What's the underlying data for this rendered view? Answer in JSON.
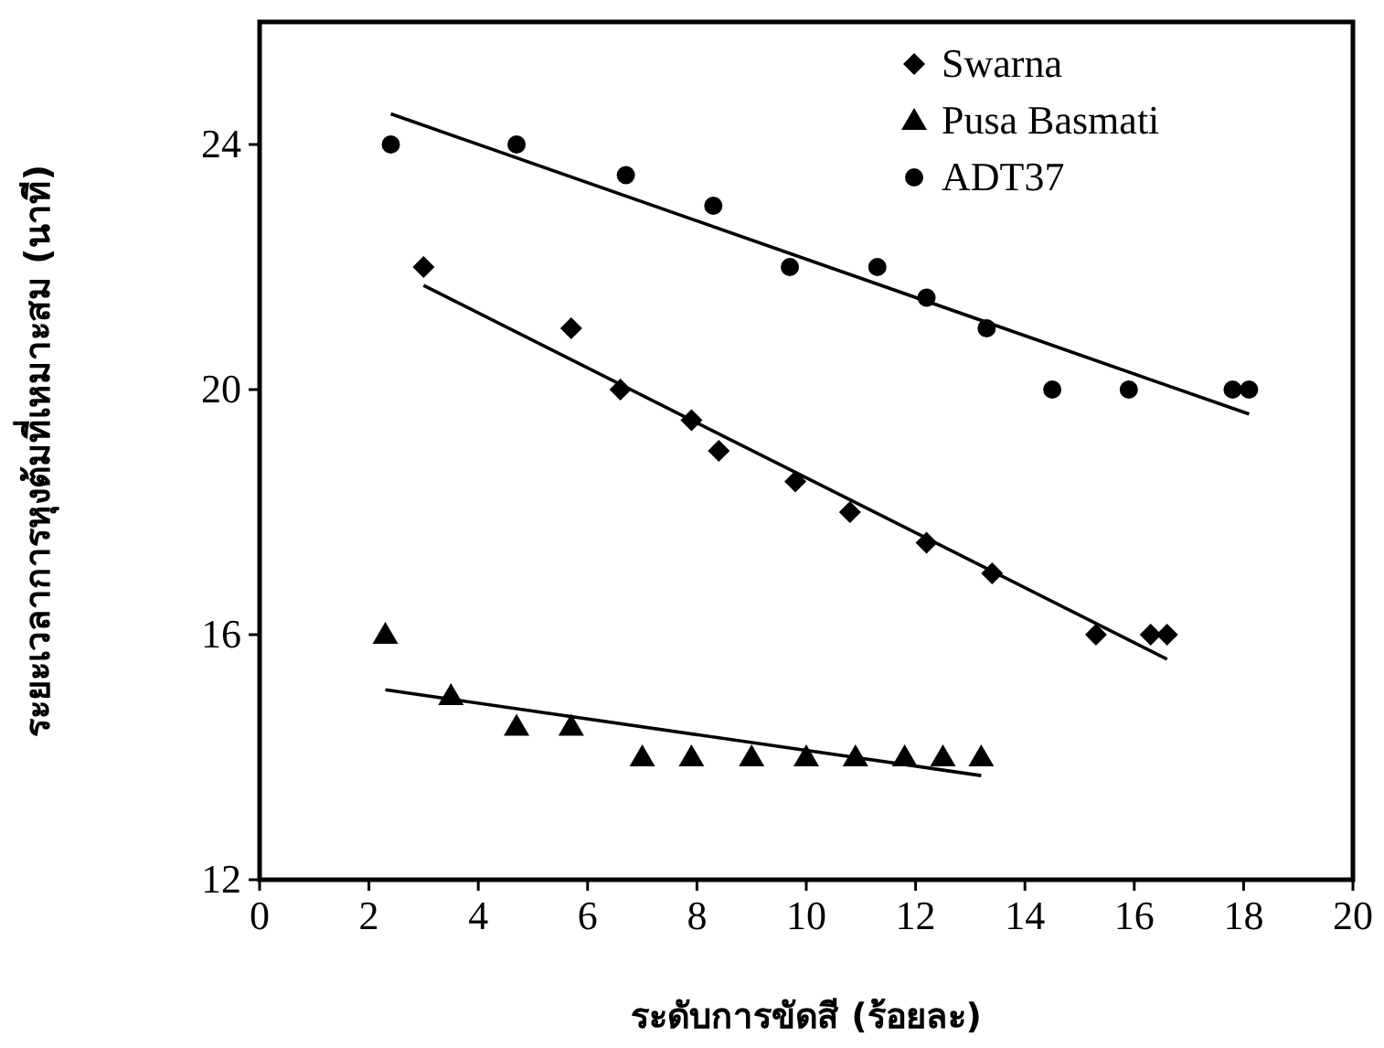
{
  "chart_data": {
    "type": "scatter",
    "xlabel": "ระดับการขัดสี (ร้อยละ)",
    "ylabel": "ระยะเวลาการหุงต้มที่เหมาะสม (นาที)",
    "xlim": [
      0,
      20
    ],
    "xticks": [
      0,
      2,
      4,
      6,
      8,
      10,
      12,
      14,
      16,
      18,
      20
    ],
    "ylim": [
      12,
      26
    ],
    "yticks": [
      12,
      16,
      20,
      24
    ],
    "legend": "top right",
    "grid": false,
    "series": [
      {
        "name": "Swarna",
        "color": "#000000",
        "marker": "diamond",
        "x": [
          3,
          5.7,
          6.6,
          7.9,
          8.4,
          9.8,
          10.8,
          12.2,
          13.4,
          15.3,
          16.3,
          16.6
        ],
        "values": [
          22,
          21,
          20,
          19.5,
          19,
          18.5,
          18,
          17.5,
          17,
          16,
          16,
          16
        ]
      },
      {
        "name": "Pusa Basmati",
        "color": "#000000",
        "marker": "triangle",
        "x": [
          2.3,
          3.5,
          4.7,
          5.7,
          7,
          7.9,
          9,
          10,
          10.9,
          11.8,
          12.5,
          13.2
        ],
        "values": [
          16,
          15,
          14.5,
          14.5,
          14,
          14,
          14,
          14,
          14,
          14,
          14,
          14
        ]
      },
      {
        "name": "ADT37",
        "color": "#000000",
        "marker": "circle",
        "x": [
          2.4,
          4.7,
          6.7,
          8.3,
          9.7,
          11.3,
          12.2,
          13.3,
          14.5,
          15.9,
          17.8,
          18.1
        ],
        "values": [
          24,
          24,
          23.5,
          23,
          22,
          22,
          21.5,
          21,
          20,
          20,
          20,
          20
        ]
      },
      {
        "type": "line",
        "color": "#000000",
        "marker": "none",
        "x": [
          3,
          16.6
        ],
        "values": [
          21.7,
          15.6
        ]
      },
      {
        "type": "line",
        "color": "#000000",
        "marker": "none",
        "x": [
          2.3,
          13.2
        ],
        "values": [
          15.1,
          13.7
        ]
      },
      {
        "type": "line",
        "color": "#000000",
        "marker": "none",
        "x": [
          2.4,
          18.1
        ],
        "values": [
          24.5,
          19.6
        ]
      }
    ]
  }
}
